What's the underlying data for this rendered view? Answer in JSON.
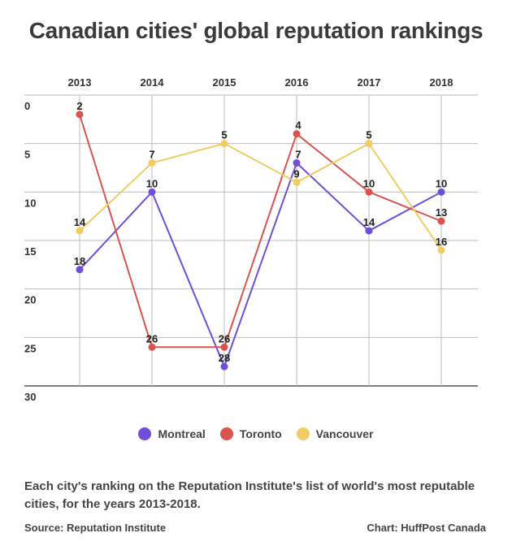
{
  "chart_data": {
    "type": "line",
    "title": "Canadian cities' global reputation rankings",
    "categories": [
      "2013",
      "2014",
      "2015",
      "2016",
      "2017",
      "2018"
    ],
    "y_ticks": [
      0,
      5,
      10,
      15,
      20,
      25,
      30
    ],
    "ylim": [
      0,
      30
    ],
    "y_inverted": true,
    "x_axis_position": "top",
    "xlabel": "",
    "ylabel": "",
    "grid": true,
    "legend_position": "bottom",
    "series": [
      {
        "name": "Montreal",
        "color": "#6f4fd8",
        "values": [
          18,
          10,
          28,
          7,
          14,
          10
        ]
      },
      {
        "name": "Toronto",
        "color": "#d9534f",
        "values": [
          2,
          26,
          26,
          4,
          10,
          13
        ]
      },
      {
        "name": "Vancouver",
        "color": "#f0cd63",
        "values": [
          14,
          7,
          5,
          9,
          5,
          16
        ]
      }
    ]
  },
  "caption": "Each city's ranking on the Reputation Institute's list of world's most reputable cities, for the years 2013-2018.",
  "source": "Source: Reputation Institute",
  "credit": "Chart: HuffPost Canada"
}
